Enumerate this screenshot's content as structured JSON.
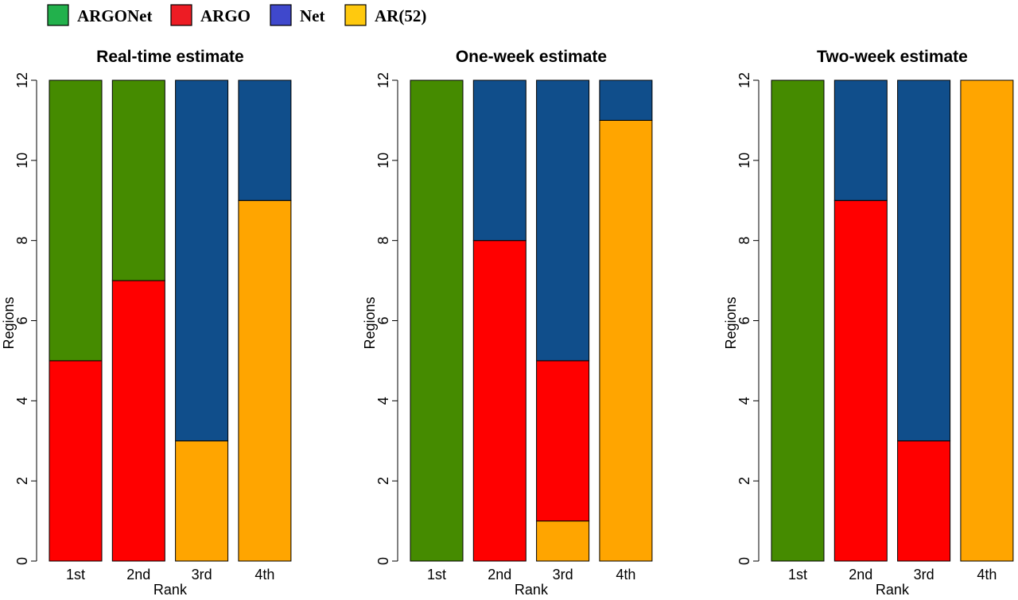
{
  "legend": [
    {
      "label": "ARGONet",
      "color": "#22b14c"
    },
    {
      "label": "ARGO",
      "color": "#ed1c24"
    },
    {
      "label": "Net",
      "color": "#3f48cc"
    },
    {
      "label": "AR(52)",
      "color": "#ffc90e"
    }
  ],
  "colors": {
    "ARGONet": "#458b00",
    "ARGO": "#ff0000",
    "Net": "#104e8b",
    "AR(52)": "#ffa500"
  },
  "chart_data": [
    {
      "type": "bar",
      "stacked": true,
      "title": "Real-time estimate",
      "xlabel": "Rank",
      "ylabel": "Regions",
      "ylim": [
        0,
        12
      ],
      "yticks": [
        "0",
        "2",
        "4",
        "6",
        "8",
        "10",
        "12"
      ],
      "categories": [
        "1st",
        "2nd",
        "3rd",
        "4th"
      ],
      "series": [
        {
          "name": "AR(52)",
          "values": [
            0,
            0,
            3,
            9
          ]
        },
        {
          "name": "ARGO",
          "values": [
            5,
            7,
            0,
            0
          ]
        },
        {
          "name": "Net",
          "values": [
            0,
            0,
            9,
            3
          ]
        },
        {
          "name": "ARGONet",
          "values": [
            7,
            5,
            0,
            0
          ]
        }
      ]
    },
    {
      "type": "bar",
      "stacked": true,
      "title": "One-week estimate",
      "xlabel": "Rank",
      "ylabel": "Regions",
      "ylim": [
        0,
        12
      ],
      "yticks": [
        "0",
        "2",
        "4",
        "6",
        "8",
        "10",
        "12"
      ],
      "categories": [
        "1st",
        "2nd",
        "3rd",
        "4th"
      ],
      "series": [
        {
          "name": "AR(52)",
          "values": [
            0,
            0,
            1,
            11
          ]
        },
        {
          "name": "ARGO",
          "values": [
            0,
            8,
            4,
            0
          ]
        },
        {
          "name": "Net",
          "values": [
            0,
            4,
            7,
            1
          ]
        },
        {
          "name": "ARGONet",
          "values": [
            12,
            0,
            0,
            0
          ]
        }
      ]
    },
    {
      "type": "bar",
      "stacked": true,
      "title": "Two-week estimate",
      "xlabel": "Rank",
      "ylabel": "Regions",
      "ylim": [
        0,
        12
      ],
      "yticks": [
        "0",
        "2",
        "4",
        "6",
        "8",
        "10",
        "12"
      ],
      "categories": [
        "1st",
        "2nd",
        "3rd",
        "4th"
      ],
      "series": [
        {
          "name": "AR(52)",
          "values": [
            0,
            0,
            0,
            12
          ]
        },
        {
          "name": "ARGO",
          "values": [
            0,
            9,
            3,
            0
          ]
        },
        {
          "name": "Net",
          "values": [
            0,
            3,
            9,
            0
          ]
        },
        {
          "name": "ARGONet",
          "values": [
            12,
            0,
            0,
            0
          ]
        }
      ]
    }
  ]
}
